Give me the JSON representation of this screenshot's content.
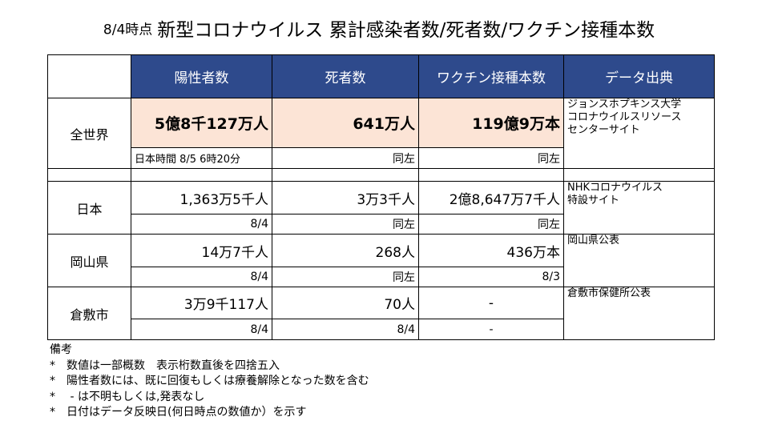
{
  "title": {
    "date": "8/4時点",
    "main": "新型コロナウイルス 累計感染者数/死者数/ワクチン接種本数"
  },
  "headers": [
    "陽性者数",
    "死者数",
    "ワクチン接種本数",
    "データ出典"
  ],
  "world": {
    "label": "全世界",
    "positive": "5億8千127万人",
    "deaths": "641万人",
    "vaccines": "119億9万本",
    "positive_date": "日本時間 8/5 6時20分",
    "deaths_date": "同左",
    "vaccines_date": "同左",
    "source": [
      "ジョンスホプキンス大学",
      "コロナウイルスリソース",
      "センターサイト"
    ]
  },
  "japan": {
    "label": "日本",
    "positive": "1,363万5千人",
    "deaths": "3万3千人",
    "vaccines": "2億8,647万7千人",
    "positive_date": "8/4",
    "deaths_date": "同左",
    "vaccines_date": "同左",
    "source": [
      "NHKコロナウイルス",
      "特設サイト"
    ]
  },
  "okayama": {
    "label": "岡山県",
    "positive": "14万7千人",
    "deaths": "268人",
    "vaccines": "436万本",
    "positive_date": "8/4",
    "deaths_date": "同左",
    "vaccines_date": "8/3",
    "source": [
      "岡山県公表"
    ]
  },
  "kurashiki": {
    "label": "倉敷市",
    "positive": "3万9千117人",
    "deaths": "70人",
    "vaccines": "-",
    "positive_date": "8/4",
    "deaths_date": "8/4",
    "vaccines_date": "-",
    "source": [
      "倉敷市保健所公表"
    ]
  },
  "notes": {
    "heading": "備考",
    "items": [
      "*　数値は一部概数　表示桁数直後を四捨五入",
      "*　陽性者数には、既に回復もしくは療養解除となった数を含む",
      "*　 - は不明もしくは,発表なし",
      "*　日付はデータ反映日(何日時点の数値か）を示す"
    ]
  }
}
